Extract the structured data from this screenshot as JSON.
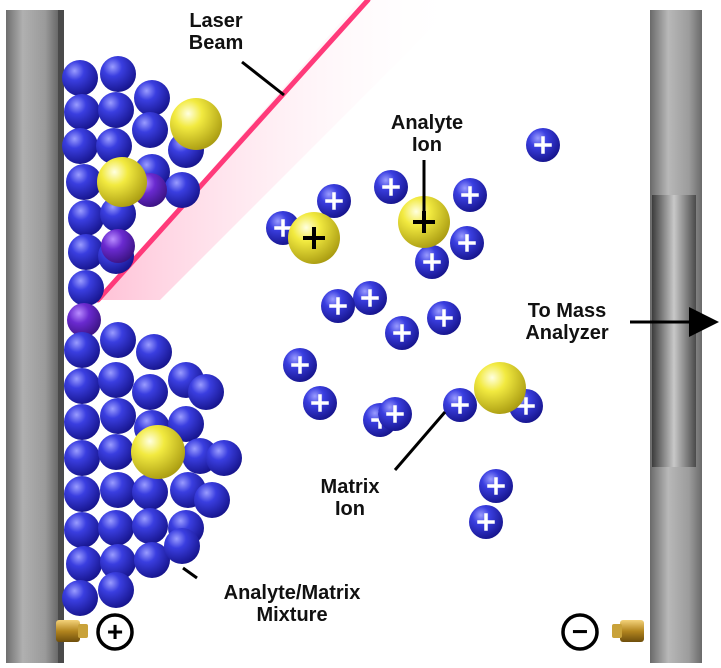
{
  "labels": {
    "laser_beam": [
      "Laser",
      "Beam"
    ],
    "analyte_ion": [
      "Analyte",
      "Ion"
    ],
    "to_mass_analyzer": [
      "To Mass",
      "Analyzer"
    ],
    "matrix_ion": [
      "Matrix",
      "Ion"
    ],
    "mixture": [
      "Analyte/Matrix",
      "Mixture"
    ]
  },
  "symbols": {
    "positive": "+",
    "negative": "−"
  },
  "colors": {
    "plate": "#8e8e8e",
    "matrix_sphere": "#2f2fd0",
    "analyte_sphere": "#e8e03a",
    "laser": "#ff3a7a",
    "connector": "#c9a23a"
  }
}
